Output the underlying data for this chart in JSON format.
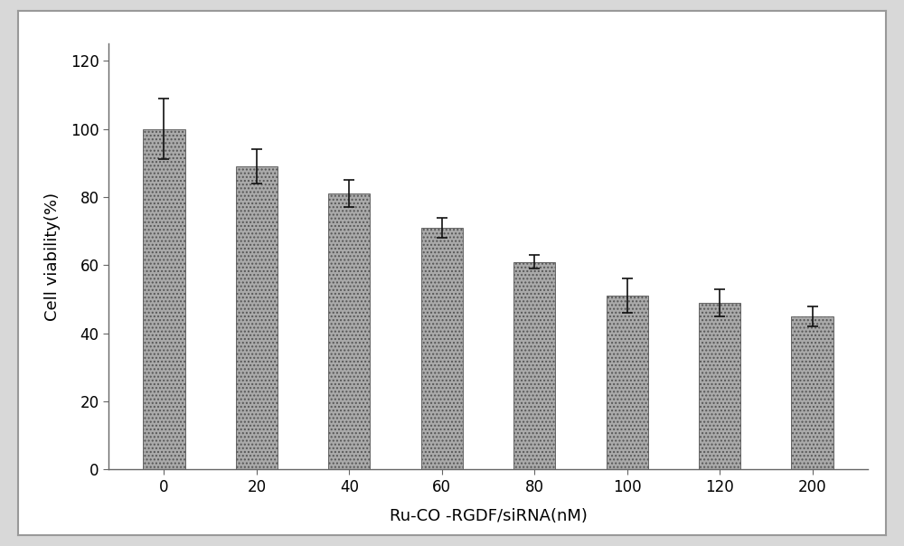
{
  "categories": [
    "0",
    "20",
    "40",
    "60",
    "80",
    "100",
    "120",
    "200"
  ],
  "values": [
    100,
    89,
    81,
    71,
    61,
    51,
    49,
    45
  ],
  "errors": [
    9,
    5,
    4,
    3,
    2,
    5,
    4,
    3
  ],
  "bar_color": "#aaaaaa",
  "bar_edgecolor": "#555555",
  "xlabel": "Ru-CO -RGDF/siRNA(nM)",
  "ylabel": "Cell viability(%)",
  "ylim": [
    0,
    125
  ],
  "yticks": [
    0,
    20,
    40,
    60,
    80,
    100,
    120
  ],
  "background_color": "#ffffff",
  "figure_bg": "#ffffff",
  "outer_bg": "#d8d8d8",
  "hatch": "....",
  "bar_width": 0.45
}
